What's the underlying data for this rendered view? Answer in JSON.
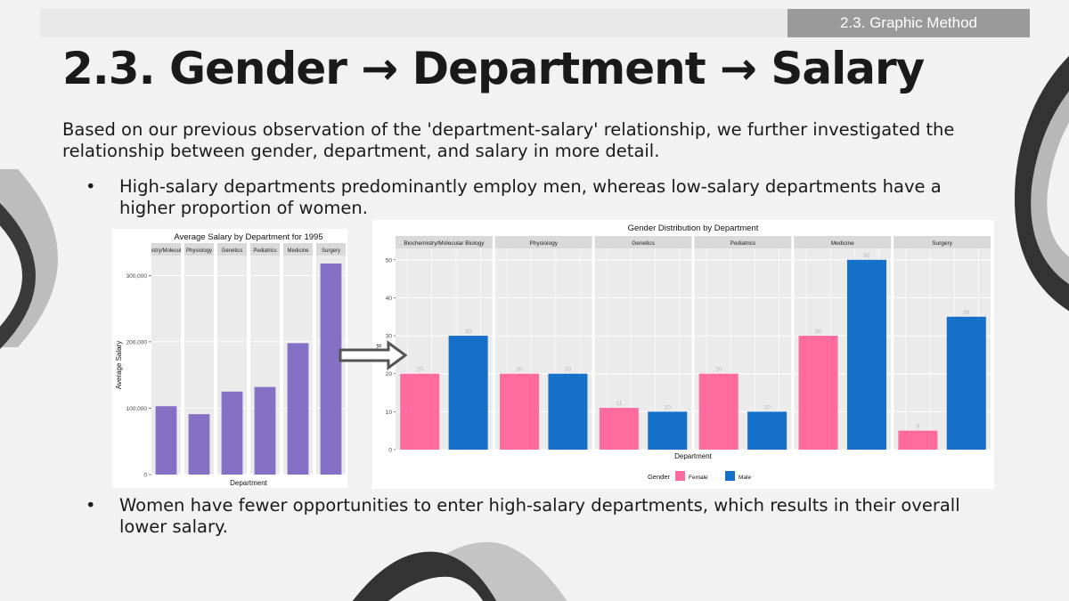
{
  "header": {
    "section_tag": "2.3. Graphic Method"
  },
  "title": "2.3. Gender → Department → Salary",
  "intro": "Based on our previous observation of the 'department-salary' relationship, we further investigated the relationship between gender, department, and salary in more detail.",
  "bullets": [
    "High-salary departments predominantly employ men, whereas low-salary departments have a higher proportion of women.",
    "Women have fewer opportunities to enter high-salary departments, which results in their overall lower salary."
  ],
  "bullet_glyph": "•",
  "colors": {
    "bar_purple": "#8470c5",
    "female": "#ff6b9d",
    "male": "#1470c8",
    "panel_bg": "#ebebeb",
    "strip_bg": "#d9d9d9"
  },
  "chart_data": [
    {
      "type": "bar",
      "title": "Average Salary by Department for 1995",
      "xlabel": "Department",
      "ylabel": "Average Salary",
      "categories": [
        "Biochemistry/Molecular Biology",
        "Physiology",
        "Genetics",
        "Pediatrics",
        "Medicine",
        "Surgery"
      ],
      "strip_labels": [
        "istry/Molecul",
        "Physiology",
        "Genetics",
        "Pediatrics",
        "Medicine",
        "Surgery"
      ],
      "values": [
        103000,
        91000,
        125000,
        132000,
        198000,
        318000
      ],
      "ylim": [
        0,
        330000
      ],
      "yticks": [
        0,
        100000,
        200000,
        300000
      ],
      "ytick_labels": [
        "0",
        "100,000",
        "200,000",
        "300,000"
      ],
      "grid": true
    },
    {
      "type": "bar",
      "title": "Gender Distribution by Department",
      "xlabel": "Department",
      "ylabel": "unt",
      "categories": [
        "Biochemistry/Molecular Biology",
        "Physiology",
        "Genetics",
        "Pediatrics",
        "Medicine",
        "Surgery"
      ],
      "series": [
        {
          "name": "Female",
          "values": [
            20,
            20,
            11,
            20,
            30,
            5
          ]
        },
        {
          "name": "Male",
          "values": [
            30,
            20,
            10,
            10,
            50,
            35
          ]
        }
      ],
      "ylim": [
        0,
        53
      ],
      "yticks": [
        0,
        10,
        20,
        30,
        40,
        50
      ],
      "legend_title": "Gender",
      "legend_position": "bottom",
      "grid": true
    }
  ]
}
